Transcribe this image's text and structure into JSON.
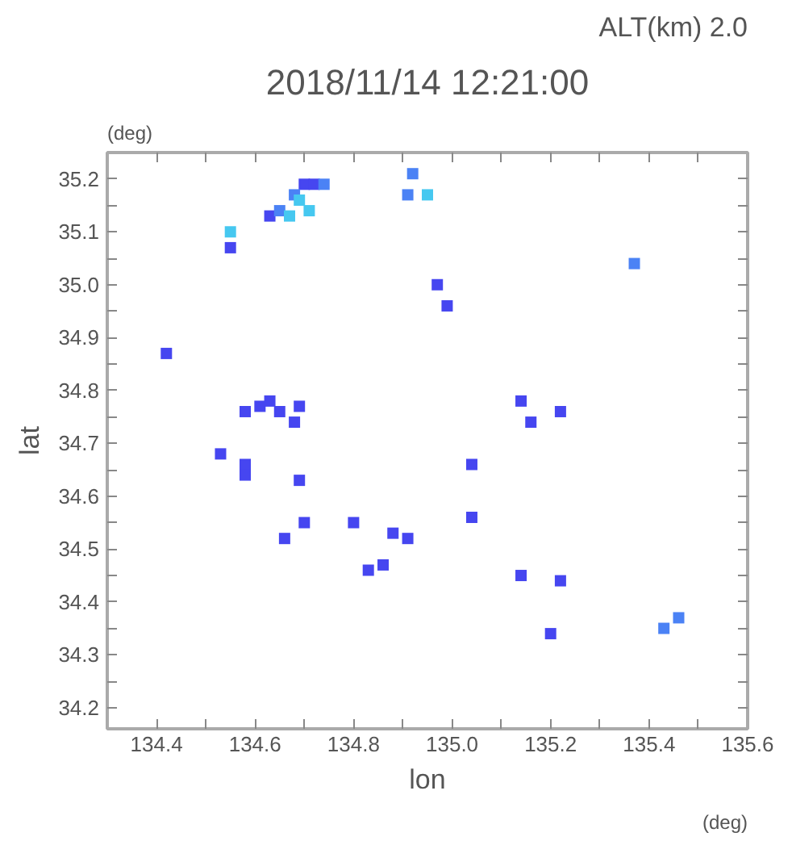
{
  "chart_data": {
    "type": "scatter",
    "title": "2018/11/14 12:21:00",
    "subtitle": "ALT(km) 2.0",
    "xlabel": "lon",
    "ylabel": "lat",
    "annotations": [
      "(deg)",
      "(deg)"
    ],
    "xlim": [
      134.3,
      135.6
    ],
    "ylim": [
      34.16,
      35.25
    ],
    "xticks": [
      {
        "value": 134.3,
        "label": null
      },
      134.4,
      {
        "value": 134.5,
        "label": null
      },
      134.6,
      {
        "value": 134.7,
        "label": null
      },
      134.8,
      {
        "value": 134.9,
        "label": null
      },
      {
        "value": 135.0,
        "label": "135.0"
      },
      {
        "value": 135.1,
        "label": null
      },
      135.2,
      {
        "value": 135.3,
        "label": null
      },
      135.4,
      {
        "value": 135.5,
        "label": null
      },
      135.6
    ],
    "yticks": [
      34.2,
      {
        "value": 34.25,
        "label": null
      },
      34.3,
      {
        "value": 34.35,
        "label": null
      },
      34.4,
      {
        "value": 34.45,
        "label": null
      },
      34.5,
      {
        "value": 34.55,
        "label": null
      },
      34.6,
      {
        "value": 34.65,
        "label": null
      },
      34.7,
      {
        "value": 34.75,
        "label": null
      },
      34.8,
      {
        "value": 34.85,
        "label": null
      },
      34.9,
      {
        "value": 34.95,
        "label": null
      },
      {
        "value": 35.0,
        "label": "35.0"
      },
      {
        "value": 35.05,
        "label": null
      },
      35.1,
      {
        "value": 35.15,
        "label": null
      },
      35.2
    ],
    "grid": false,
    "marker": "square",
    "series": [
      {
        "color": "#4646f0",
        "x": [
          134.7,
          134.72,
          134.55,
          134.42,
          134.97,
          134.99,
          134.58,
          134.61,
          134.63,
          134.65,
          134.69,
          134.68,
          134.53,
          134.58,
          134.58,
          134.69,
          134.8,
          134.7,
          134.66,
          134.83,
          134.86,
          134.88,
          134.91,
          135.04,
          135.04,
          135.14,
          135.16,
          135.22,
          135.14,
          135.22,
          135.2,
          134.63
        ],
        "values": [
          35.19,
          35.19,
          35.07,
          34.87,
          35.0,
          34.96,
          34.76,
          34.77,
          34.78,
          34.76,
          34.77,
          34.74,
          34.68,
          34.66,
          34.64,
          34.63,
          34.55,
          34.55,
          34.52,
          34.46,
          34.47,
          34.53,
          34.52,
          34.66,
          34.56,
          34.78,
          34.74,
          34.76,
          34.45,
          34.44,
          34.34,
          35.13
        ]
      },
      {
        "color": "#4b82f5",
        "x": [
          134.68,
          134.74,
          134.92,
          134.91,
          135.37,
          135.43,
          135.46,
          134.65
        ],
        "values": [
          35.17,
          35.19,
          35.21,
          35.17,
          35.04,
          34.35,
          34.37,
          35.14
        ]
      },
      {
        "color": "#46c8f0",
        "x": [
          134.69,
          134.55,
          134.71,
          134.67,
          134.95
        ],
        "values": [
          35.16,
          35.1,
          35.14,
          35.13,
          35.17
        ]
      }
    ]
  }
}
